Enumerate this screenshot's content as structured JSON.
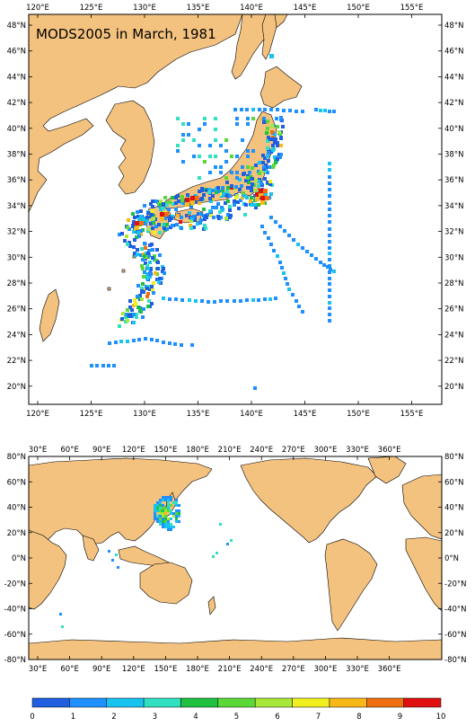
{
  "top_map": {
    "title": "MODS2005 in March, 1981",
    "lon_ticks": [
      "120°E",
      "125°E",
      "130°E",
      "135°E",
      "140°E",
      "145°E",
      "150°E",
      "155°E"
    ],
    "lat_ticks": [
      "48°N",
      "46°N",
      "44°N",
      "42°N",
      "40°N",
      "38°N",
      "36°N",
      "34°N",
      "32°N",
      "30°N",
      "28°N",
      "26°N",
      "24°N",
      "22°N",
      "20°N"
    ],
    "lon_range": [
      119,
      158
    ],
    "lat_range": [
      18.5,
      49.3
    ]
  },
  "bottom_map": {
    "lon_ticks": [
      "30°E",
      "60°E",
      "90°E",
      "120°E",
      "150°E",
      "180°E",
      "210°E",
      "240°E",
      "270°E",
      "300°E",
      "330°E",
      "360°E"
    ],
    "lat_ticks": [
      "80°N",
      "60°N",
      "40°N",
      "20°N",
      "0°N",
      "-20°N",
      "-40°N",
      "-60°N",
      "-80°N"
    ],
    "lon_range": [
      20,
      380
    ],
    "lat_range": [
      -80,
      80
    ]
  },
  "colorbar": {
    "labels": [
      "0",
      "1",
      "2",
      "3",
      "4",
      "5",
      "6",
      "7",
      "8",
      "9",
      "10"
    ],
    "colors": [
      "#1f5fe0",
      "#1e90ff",
      "#19c3f0",
      "#30e0c0",
      "#20c040",
      "#5ad838",
      "#a8e838",
      "#f0f020",
      "#f8b818",
      "#f07010",
      "#e01010"
    ]
  },
  "colors": {
    "land": "#f4c27f",
    "coast": "#000000",
    "frame": "#000000",
    "background": "#ffffff"
  }
}
